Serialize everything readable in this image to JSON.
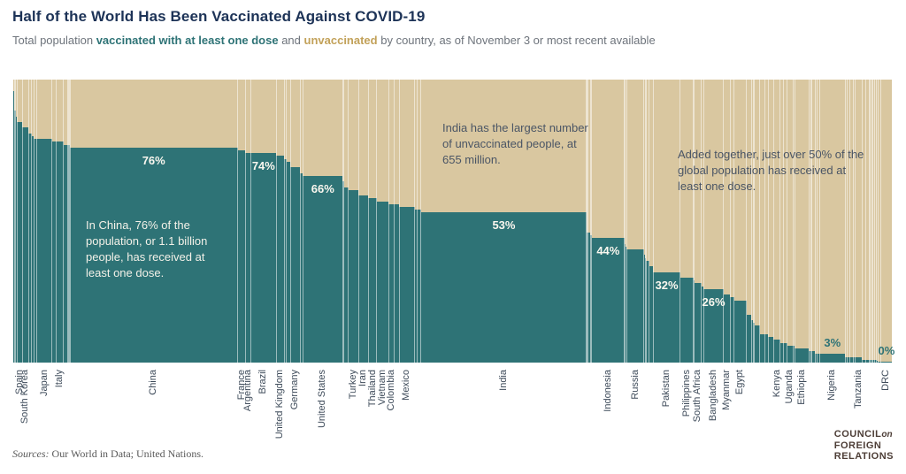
{
  "header": {
    "title": "Half of the World Has Been Vaccinated Against COVID-19",
    "subtitle": {
      "prefix": "Total population ",
      "vaccinated_label": "vaccinated with at least one dose",
      "middle": " and ",
      "unvaccinated_label": "unvaccinated",
      "suffix": " by country, as of November 3 or most recent available"
    }
  },
  "annotations": {
    "china": "In China, 76% of the population, or 1.1 billion people, has received at least one dose.",
    "india": "India has the largest number of unvaccinated people, at 655 million.",
    "global": "Added together, just over 50% of the global population has received at least one dose."
  },
  "footer": {
    "sources_label": "Sources:",
    "sources_text": " Our World in Data; United Nations.",
    "logo": {
      "line1": "COUNCIL",
      "line1_script": "on",
      "line2": "FOREIGN",
      "line3": "RELATIONS"
    }
  },
  "colors": {
    "vaccinated_teal": "#2E7376",
    "unvaccinated_tan": "#D9C7A0",
    "separator": "rgba(255,255,255,0.52)",
    "title_navy": "#1D3357",
    "annotation_dark": "#4A5565",
    "axis_label": "#3E4B5A",
    "gold_text": "#C2A159"
  },
  "chart_data": {
    "type": "marimekko",
    "title": "Half of the World Has Been Vaccinated Against COVID-19",
    "x_encoding": "bar width proportional to country population (millions, estimated)",
    "y_encoding": "percent of population vaccinated with at least one dose (teal); remainder unvaccinated (tan)",
    "as_of": "November 3",
    "ylim": [
      0,
      100
    ],
    "countries": [
      {
        "name": "",
        "population_m": 10,
        "pct_vaccinated": 96,
        "labeled": false
      },
      {
        "name": "",
        "population_m": 10,
        "pct_vaccinated": 89,
        "labeled": false
      },
      {
        "name": "",
        "population_m": 11,
        "pct_vaccinated": 87,
        "labeled": false
      },
      {
        "name": "Spain",
        "population_m": 47,
        "pct_vaccinated": 85,
        "labeled": true
      },
      {
        "name": "South Korea",
        "population_m": 52,
        "pct_vaccinated": 83,
        "labeled": true
      },
      {
        "name": "",
        "population_m": 24,
        "pct_vaccinated": 81,
        "labeled": false
      },
      {
        "name": "",
        "population_m": 19,
        "pct_vaccinated": 80,
        "labeled": false
      },
      {
        "name": "",
        "population_m": 26,
        "pct_vaccinated": 79,
        "labeled": false
      },
      {
        "name": "Japan",
        "population_m": 126,
        "pct_vaccinated": 79,
        "labeled": true
      },
      {
        "name": "",
        "population_m": 38,
        "pct_vaccinated": 78,
        "labeled": false
      },
      {
        "name": "Italy",
        "population_m": 60,
        "pct_vaccinated": 78,
        "labeled": true
      },
      {
        "name": "",
        "population_m": 33,
        "pct_vaccinated": 77,
        "labeled": false
      },
      {
        "name": "",
        "population_m": 18,
        "pct_vaccinated": 77,
        "labeled": false
      },
      {
        "name": "China",
        "population_m": 1412,
        "pct_vaccinated": 76,
        "labeled": true,
        "pct_label": "76%",
        "pct_label_pos": "in",
        "gap_before": true
      },
      {
        "name": "France",
        "population_m": 65,
        "pct_vaccinated": 75,
        "labeled": true
      },
      {
        "name": "Argentina",
        "population_m": 45,
        "pct_vaccinated": 74,
        "labeled": true
      },
      {
        "name": "Brazil",
        "population_m": 214,
        "pct_vaccinated": 74,
        "labeled": true,
        "pct_label": "74%",
        "pct_label_pos": "in"
      },
      {
        "name": "United Kingdom",
        "population_m": 68,
        "pct_vaccinated": 73,
        "labeled": true
      },
      {
        "name": "",
        "population_m": 17,
        "pct_vaccinated": 72,
        "labeled": false
      },
      {
        "name": "",
        "population_m": 33,
        "pct_vaccinated": 71,
        "labeled": false
      },
      {
        "name": "Germany",
        "population_m": 84,
        "pct_vaccinated": 69,
        "labeled": true
      },
      {
        "name": "",
        "population_m": 22,
        "pct_vaccinated": 67,
        "labeled": false
      },
      {
        "name": "United States",
        "population_m": 333,
        "pct_vaccinated": 66,
        "labeled": true,
        "pct_label": "66%",
        "pct_label_pos": "in"
      },
      {
        "name": "",
        "population_m": 11,
        "pct_vaccinated": 64,
        "labeled": false
      },
      {
        "name": "",
        "population_m": 37,
        "pct_vaccinated": 62,
        "labeled": false
      },
      {
        "name": "Turkey",
        "population_m": 85,
        "pct_vaccinated": 61,
        "labeled": true
      },
      {
        "name": "Iran",
        "population_m": 85,
        "pct_vaccinated": 59,
        "labeled": true
      },
      {
        "name": "Thailand",
        "population_m": 70,
        "pct_vaccinated": 58,
        "labeled": true
      },
      {
        "name": "Vietnam",
        "population_m": 98,
        "pct_vaccinated": 57,
        "labeled": true
      },
      {
        "name": "Colombia",
        "population_m": 51,
        "pct_vaccinated": 56,
        "labeled": true
      },
      {
        "name": "",
        "population_m": 38,
        "pct_vaccinated": 56,
        "labeled": false
      },
      {
        "name": "Mexico",
        "population_m": 130,
        "pct_vaccinated": 55,
        "labeled": true
      },
      {
        "name": "",
        "population_m": 19,
        "pct_vaccinated": 54,
        "labeled": false
      },
      {
        "name": "",
        "population_m": 35,
        "pct_vaccinated": 54,
        "labeled": false
      },
      {
        "name": "India",
        "population_m": 1393,
        "pct_vaccinated": 53,
        "labeled": true,
        "pct_label": "53%",
        "pct_label_pos": "in"
      },
      {
        "name": "",
        "population_m": 30,
        "pct_vaccinated": 46,
        "labeled": false,
        "gap_before": true
      },
      {
        "name": "",
        "population_m": 12,
        "pct_vaccinated": 45,
        "labeled": false
      },
      {
        "name": "Indonesia",
        "population_m": 276,
        "pct_vaccinated": 44,
        "labeled": true,
        "pct_label": "44%",
        "pct_label_pos": "in"
      },
      {
        "name": "",
        "population_m": 7,
        "pct_vaccinated": 42,
        "labeled": false
      },
      {
        "name": "",
        "population_m": 10,
        "pct_vaccinated": 41,
        "labeled": false
      },
      {
        "name": "Russia",
        "population_m": 146,
        "pct_vaccinated": 40,
        "labeled": true
      },
      {
        "name": "",
        "population_m": 10,
        "pct_vaccinated": 38,
        "labeled": false
      },
      {
        "name": "",
        "population_m": 7,
        "pct_vaccinated": 37,
        "labeled": false
      },
      {
        "name": "",
        "population_m": 28,
        "pct_vaccinated": 36,
        "labeled": false
      },
      {
        "name": "",
        "population_m": 34,
        "pct_vaccinated": 34,
        "labeled": false
      },
      {
        "name": "Pakistan",
        "population_m": 225,
        "pct_vaccinated": 32,
        "labeled": true,
        "pct_label": "32%",
        "pct_label_pos": "in"
      },
      {
        "name": "Philippines",
        "population_m": 111,
        "pct_vaccinated": 30,
        "labeled": true
      },
      {
        "name": "",
        "population_m": 9,
        "pct_vaccinated": 29,
        "labeled": false
      },
      {
        "name": "South Africa",
        "population_m": 60,
        "pct_vaccinated": 28,
        "labeled": true
      },
      {
        "name": "",
        "population_m": 18,
        "pct_vaccinated": 27,
        "labeled": false
      },
      {
        "name": "Bangladesh",
        "population_m": 166,
        "pct_vaccinated": 26,
        "labeled": true,
        "pct_label": "26%",
        "pct_label_pos": "in"
      },
      {
        "name": "Myanmar",
        "population_m": 55,
        "pct_vaccinated": 24,
        "labeled": true
      },
      {
        "name": "",
        "population_m": 34,
        "pct_vaccinated": 23,
        "labeled": false
      },
      {
        "name": "Egypt",
        "population_m": 104,
        "pct_vaccinated": 22,
        "labeled": true
      },
      {
        "name": "",
        "population_m": 41,
        "pct_vaccinated": 17,
        "labeled": false
      },
      {
        "name": "",
        "population_m": 15,
        "pct_vaccinated": 15,
        "labeled": false
      },
      {
        "name": "",
        "population_m": 13,
        "pct_vaccinated": 14,
        "labeled": false
      },
      {
        "name": "",
        "population_m": 44,
        "pct_vaccinated": 13,
        "labeled": false
      },
      {
        "name": "",
        "population_m": 39,
        "pct_vaccinated": 10,
        "labeled": false
      },
      {
        "name": "",
        "population_m": 32,
        "pct_vaccinated": 10,
        "labeled": false
      },
      {
        "name": "",
        "population_m": 45,
        "pct_vaccinated": 9,
        "labeled": false
      },
      {
        "name": "Kenya",
        "population_m": 55,
        "pct_vaccinated": 8,
        "labeled": true
      },
      {
        "name": "",
        "population_m": 27,
        "pct_vaccinated": 7,
        "labeled": false
      },
      {
        "name": "",
        "population_m": 32,
        "pct_vaccinated": 7,
        "labeled": false
      },
      {
        "name": "Uganda",
        "population_m": 47,
        "pct_vaccinated": 6,
        "labeled": true
      },
      {
        "name": "",
        "population_m": 17,
        "pct_vaccinated": 6,
        "labeled": false
      },
      {
        "name": "Ethiopia",
        "population_m": 118,
        "pct_vaccinated": 5,
        "labeled": true
      },
      {
        "name": "",
        "population_m": 18,
        "pct_vaccinated": 4,
        "labeled": false
      },
      {
        "name": "",
        "population_m": 8,
        "pct_vaccinated": 4,
        "labeled": false
      },
      {
        "name": "",
        "population_m": 27,
        "pct_vaccinated": 4,
        "labeled": false
      },
      {
        "name": "",
        "population_m": 19,
        "pct_vaccinated": 3,
        "labeled": false
      },
      {
        "name": "",
        "population_m": 20,
        "pct_vaccinated": 3,
        "labeled": false
      },
      {
        "name": "Nigeria",
        "population_m": 211,
        "pct_vaccinated": 3,
        "labeled": true,
        "pct_label": "3%",
        "pct_label_pos": "above"
      },
      {
        "name": "",
        "population_m": 21,
        "pct_vaccinated": 2,
        "labeled": false
      },
      {
        "name": "",
        "population_m": 21,
        "pct_vaccinated": 2,
        "labeled": false
      },
      {
        "name": "",
        "population_m": 25,
        "pct_vaccinated": 2,
        "labeled": false
      },
      {
        "name": "",
        "population_m": 16,
        "pct_vaccinated": 2,
        "labeled": false
      },
      {
        "name": "Tanzania",
        "population_m": 61,
        "pct_vaccinated": 2,
        "labeled": true
      },
      {
        "name": "",
        "population_m": 30,
        "pct_vaccinated": 1,
        "labeled": false
      },
      {
        "name": "",
        "population_m": 28,
        "pct_vaccinated": 1,
        "labeled": false
      },
      {
        "name": "",
        "population_m": 12,
        "pct_vaccinated": 1,
        "labeled": false
      },
      {
        "name": "",
        "population_m": 11,
        "pct_vaccinated": 1,
        "labeled": false
      },
      {
        "name": "",
        "population_m": 11,
        "pct_vaccinated": 1,
        "labeled": false
      },
      {
        "name": "",
        "population_m": 13,
        "pct_vaccinated": 1,
        "labeled": false
      },
      {
        "name": "",
        "population_m": 17,
        "pct_vaccinated": 1,
        "labeled": false
      },
      {
        "name": "",
        "population_m": 12,
        "pct_vaccinated": 0.5,
        "labeled": false
      },
      {
        "name": "",
        "population_m": 26,
        "pct_vaccinated": 0.3,
        "labeled": false
      },
      {
        "name": "DRC",
        "population_m": 90,
        "pct_vaccinated": 0.2,
        "labeled": true,
        "pct_label": "0%",
        "pct_label_pos": "above"
      }
    ]
  }
}
